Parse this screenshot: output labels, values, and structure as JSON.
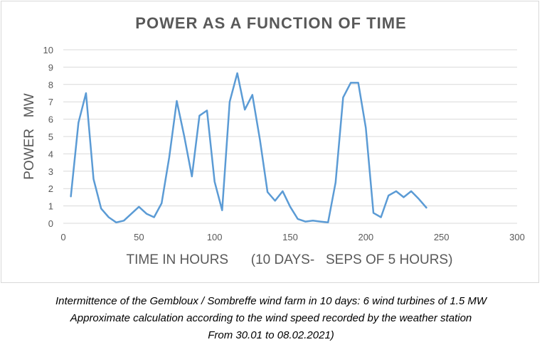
{
  "chart_data": {
    "type": "line",
    "title": "POWER AS A FUNCTION OF TIME",
    "xlabel": "TIME IN HOURS      (10 DAYS-   SEPS OF 5 HOURS)",
    "ylabel": "POWER   MW",
    "xlim": [
      0,
      300
    ],
    "ylim": [
      0,
      10
    ],
    "xticks": [
      0,
      50,
      100,
      150,
      200,
      250,
      300
    ],
    "yticks": [
      0,
      1,
      2,
      3,
      4,
      5,
      6,
      7,
      8,
      9,
      10
    ],
    "grid": true,
    "line_color": "#5b9bd5",
    "series": [
      {
        "x": [
          5,
          10,
          15,
          20,
          25,
          30,
          35,
          40,
          45,
          50,
          55,
          60,
          65,
          70,
          75,
          80,
          85,
          90,
          95,
          100,
          105,
          110,
          115,
          120,
          125,
          130,
          135,
          140,
          145,
          150,
          155,
          160,
          165,
          170,
          175,
          180,
          185,
          190,
          195,
          200,
          205,
          210,
          215,
          220,
          225,
          230,
          235,
          240
        ],
        "values": [
          1.55,
          5.8,
          7.5,
          2.55,
          0.85,
          0.35,
          0.05,
          0.15,
          0.55,
          0.95,
          0.55,
          0.35,
          1.15,
          3.8,
          7.05,
          5.0,
          2.7,
          6.2,
          6.5,
          2.4,
          0.75,
          7.0,
          8.65,
          6.55,
          7.4,
          4.8,
          1.8,
          1.3,
          1.85,
          0.95,
          0.25,
          0.1,
          0.15,
          0.1,
          0.05,
          2.35,
          7.25,
          8.1,
          8.1,
          5.5,
          0.6,
          0.35,
          1.6,
          1.85,
          1.5,
          1.85,
          1.4,
          0.9
        ]
      }
    ]
  },
  "caption": {
    "line1": "Intermittence of the Gembloux / Sombreffe wind farm in 10 days: 6 wind turbines of 1.5 MW",
    "line2": "Approximate calculation according to the wind speed recorded by the weather station",
    "line3": "From 30.01 to 08.02.2021)"
  }
}
